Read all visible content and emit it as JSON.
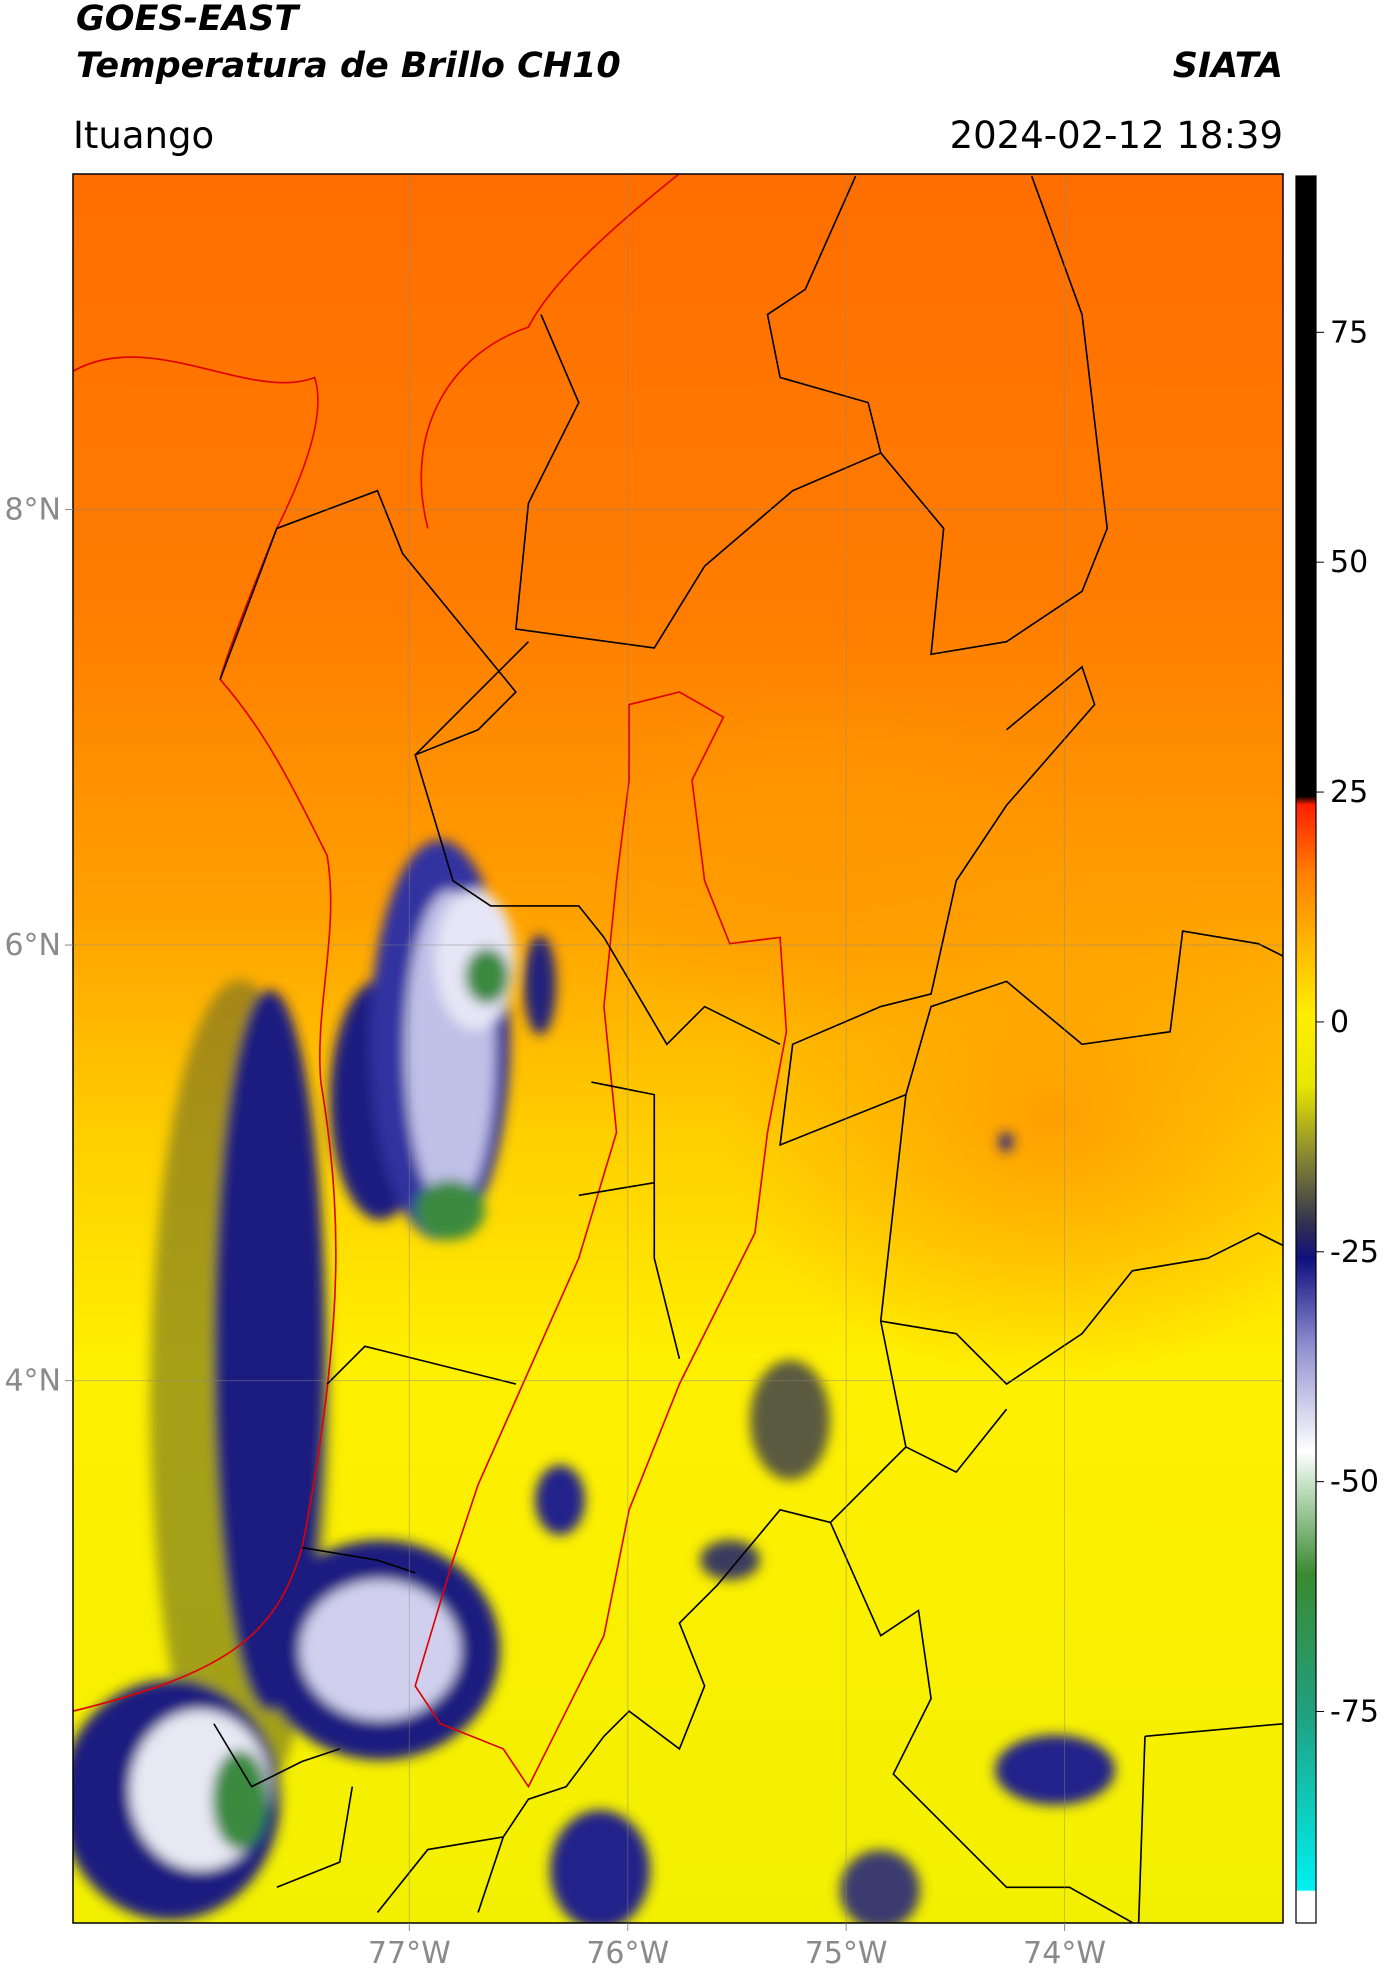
{
  "header": {
    "satellite": "GOES-EAST",
    "product": "Temperatura de Brillo CH10",
    "source": "SIATA",
    "location": "Ituango",
    "datetime": "2024-02-12 18:39"
  },
  "map": {
    "xlim": [
      -78.54,
      -73.0
    ],
    "ylim": [
      1.51,
      9.54
    ],
    "grid": true,
    "xticks": [
      {
        "value": -77,
        "label": "77°W"
      },
      {
        "value": -76,
        "label": "76°W"
      },
      {
        "value": -75,
        "label": "75°W"
      },
      {
        "value": -74,
        "label": "74°W"
      }
    ],
    "yticks": [
      {
        "value": 4,
        "label": "4°N"
      },
      {
        "value": 6,
        "label": "6°N"
      },
      {
        "value": 8,
        "label": "8°N"
      }
    ]
  },
  "colorbar": {
    "lim": [
      -98,
      92
    ],
    "ticks": [
      -75,
      -50,
      -25,
      0,
      25,
      50,
      75
    ]
  }
}
